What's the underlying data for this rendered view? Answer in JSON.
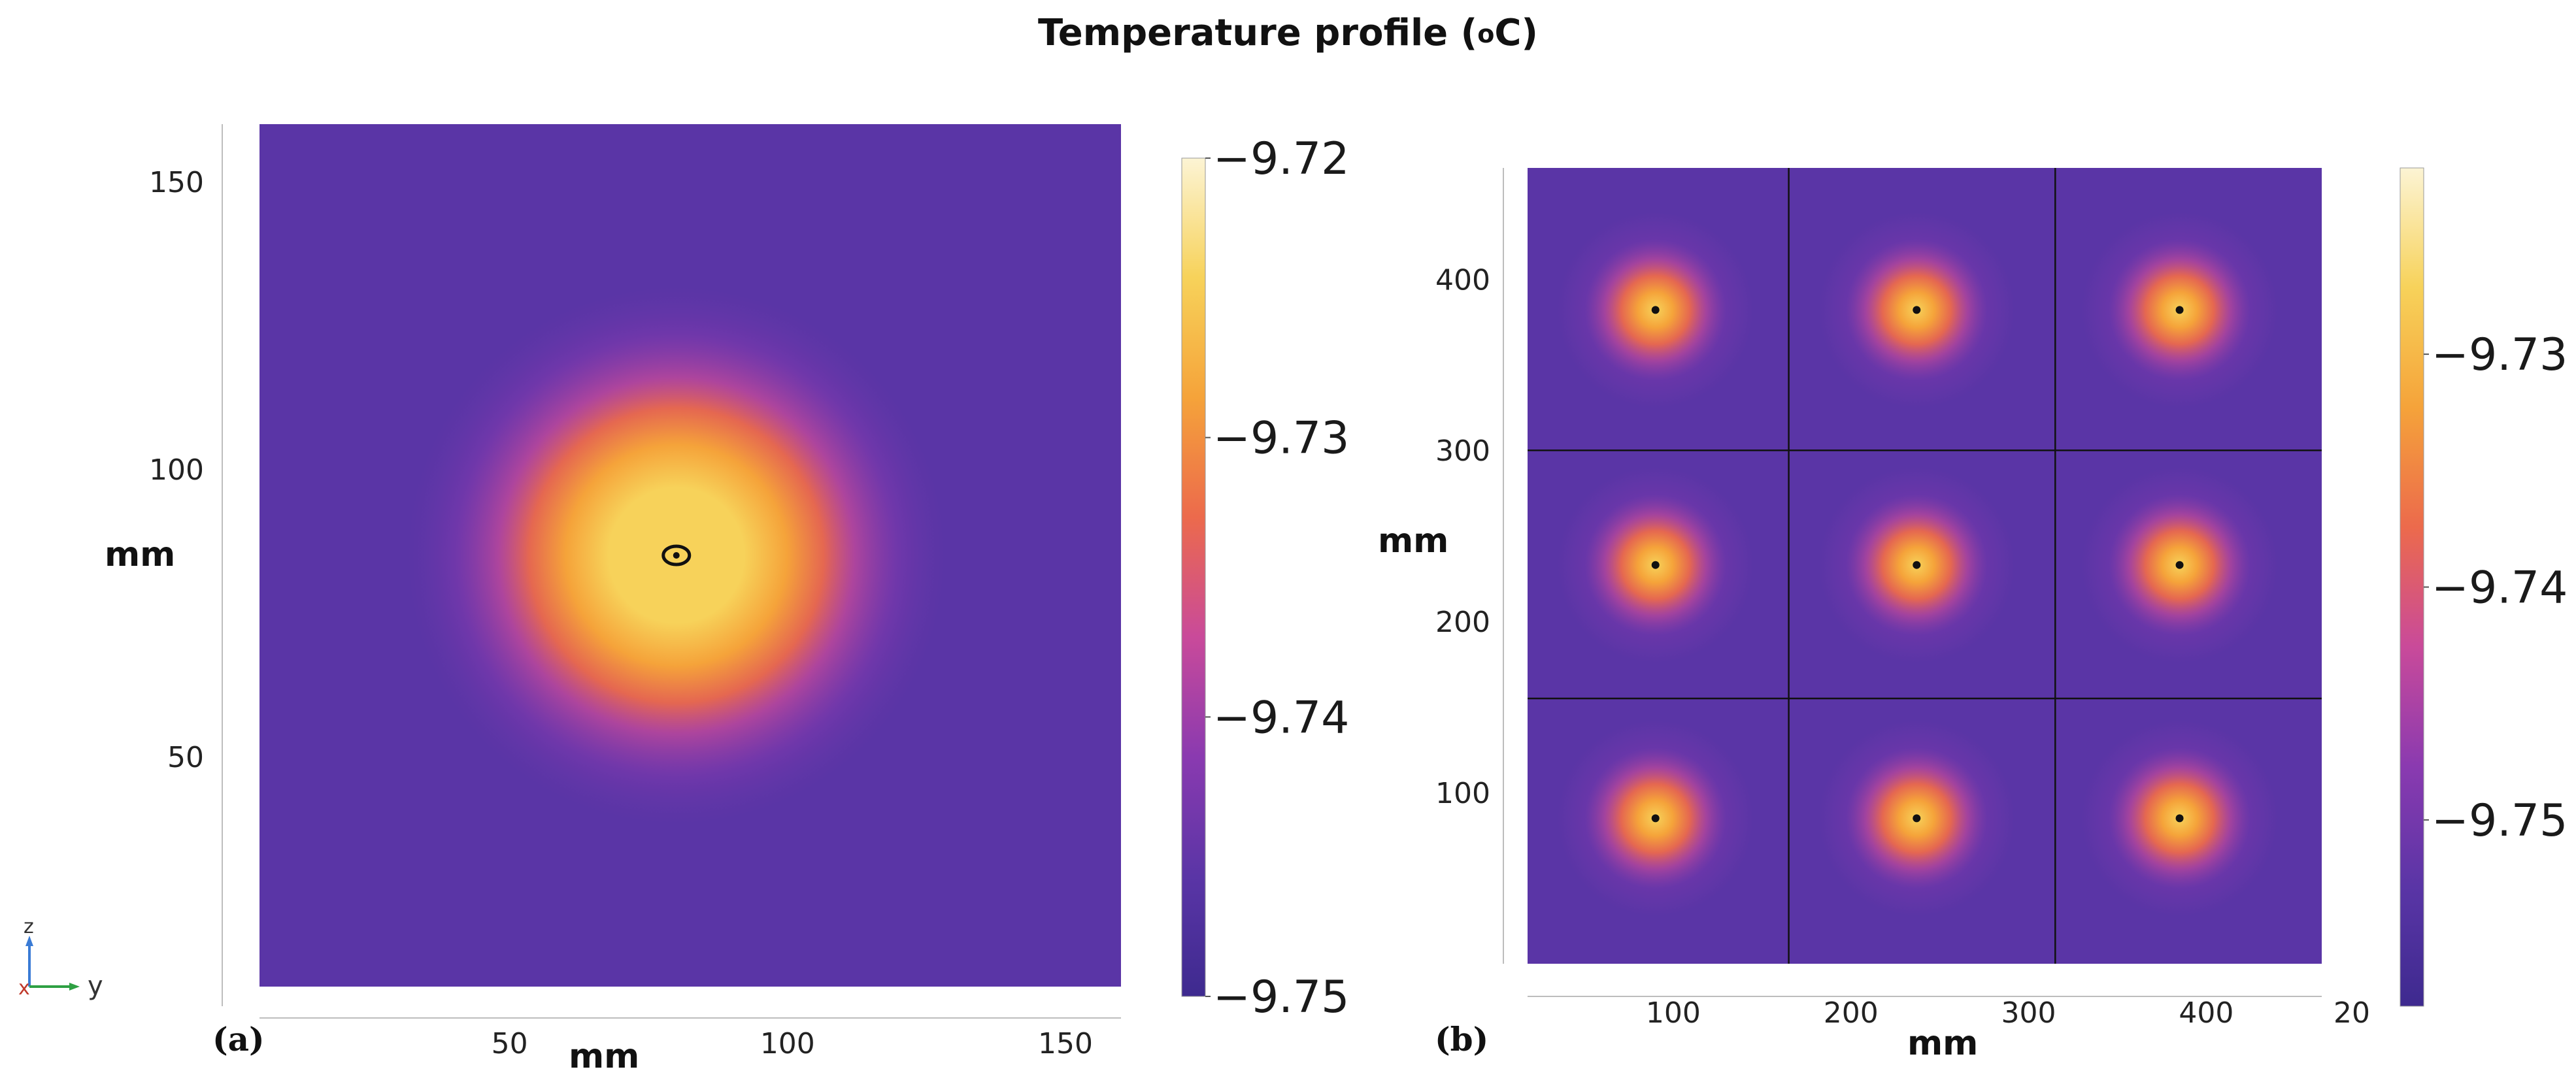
{
  "title": {
    "text": "Temperature profile (",
    "unit_sup": "o",
    "unit_tail": "C)"
  },
  "colors": {
    "colormap": [
      "#3e2a8f",
      "#5a35a6",
      "#8a3ab0",
      "#c94a9a",
      "#ec6a4c",
      "#f5a33a",
      "#f7d25a",
      "#fcf4d4"
    ],
    "grid_line": "#111111",
    "source_dot": "#111111"
  },
  "chart_data": [
    {
      "type": "heatmap",
      "panel_label": "(a)",
      "xlabel": "mm",
      "ylabel": "mm",
      "xlim": [
        5,
        160
      ],
      "ylim": [
        10,
        160
      ],
      "xticks": [
        50,
        100,
        150
      ],
      "xtick_labels": [
        "50",
        "100",
        "150"
      ],
      "yticks": [
        50,
        100,
        150
      ],
      "ytick_labels": [
        "50",
        "100",
        "150"
      ],
      "sources": [
        {
          "x": 80,
          "y": 85
        }
      ],
      "source_marker": "ring",
      "colorbar": {
        "min": -9.75,
        "max": -9.72,
        "ticks": [
          -9.72,
          -9.73,
          -9.74,
          -9.75
        ],
        "tick_labels": [
          "−9.72",
          "−9.73",
          "−9.74",
          "−9.75"
        ]
      },
      "triad": {
        "z_label": "z",
        "x_label": "x",
        "y_label": "y"
      }
    },
    {
      "type": "heatmap",
      "panel_label": "(b)",
      "xlabel": "mm",
      "ylabel": "mm",
      "xlim": [
        18,
        465
      ],
      "ylim": [
        0,
        465
      ],
      "xticks": [
        100,
        200,
        300,
        400
      ],
      "xtick_labels": [
        "100",
        "200",
        "300",
        "400"
      ],
      "extra_xtick_label": "20",
      "yticks": [
        100,
        200,
        300,
        400
      ],
      "ytick_labels": [
        "100",
        "200",
        "300",
        "400"
      ],
      "grid_lines_x": [
        165,
        315
      ],
      "grid_lines_y": [
        155,
        300
      ],
      "sources": [
        {
          "x": 90,
          "y": 382
        },
        {
          "x": 237,
          "y": 382
        },
        {
          "x": 385,
          "y": 382
        },
        {
          "x": 90,
          "y": 233
        },
        {
          "x": 237,
          "y": 233
        },
        {
          "x": 385,
          "y": 233
        },
        {
          "x": 90,
          "y": 85
        },
        {
          "x": 237,
          "y": 85
        },
        {
          "x": 385,
          "y": 85
        }
      ],
      "source_marker": "dot",
      "colorbar": {
        "min": -9.758,
        "max": -9.722,
        "ticks": [
          -9.73,
          -9.74,
          -9.75
        ],
        "tick_labels": [
          "−9.73",
          "−9.74",
          "−9.75"
        ]
      }
    }
  ]
}
